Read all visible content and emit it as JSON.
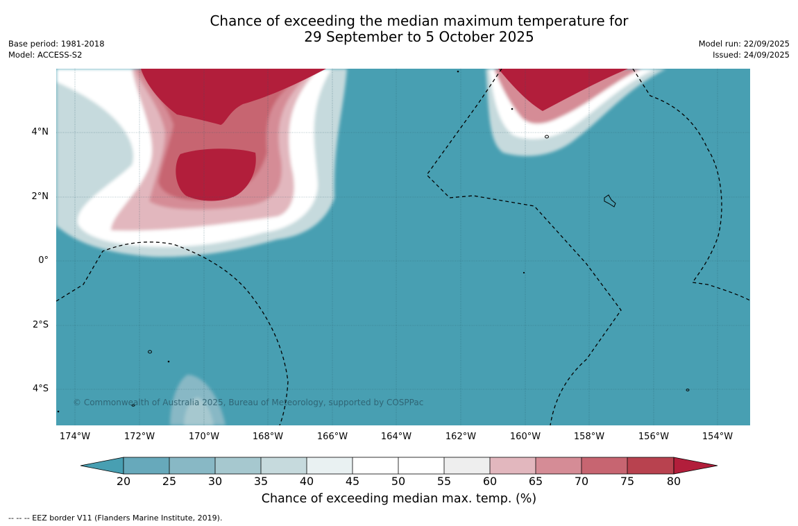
{
  "title": {
    "line1": "Chance of exceeding the median maximum temperature for",
    "line2": "29 September to 5 October 2025"
  },
  "meta_left": {
    "base_period": "Base period: 1981-2018",
    "model": "Model: ACCESS-S2"
  },
  "meta_right": {
    "model_run": "Model run: 22/09/2025",
    "issued": "Issued: 24/09/2025"
  },
  "axes": {
    "lat_labels": [
      "4°N",
      "2°N",
      "0°",
      "2°S",
      "4°S"
    ],
    "lon_labels": [
      "174°W",
      "172°W",
      "170°W",
      "168°W",
      "166°W",
      "164°W",
      "162°W",
      "160°W",
      "158°W",
      "156°W",
      "154°W"
    ]
  },
  "copyright": "© Commonwealth of Australia 2025, Bureau of Meteorology, supported by COSPPac",
  "colorbar": {
    "ticks": [
      "20",
      "25",
      "30",
      "35",
      "40",
      "45",
      "50",
      "55",
      "60",
      "65",
      "70",
      "75",
      "80"
    ],
    "title": "Chance of exceeding median max. temp. (%)"
  },
  "legend": "--  --  -- EEZ border V11 (Flanders Marine Institute, 2019).",
  "colors": {
    "low": "#489fb2",
    "high": "#b21e3b",
    "bins": [
      "#67a9bb",
      "#88b8c5",
      "#a6c8cf",
      "#c6dadd",
      "#e9f1f2",
      "#ffffff",
      "#ffffff",
      "#eeeeee",
      "#e2b7be",
      "#d58c96",
      "#c76571",
      "#b8424f"
    ]
  }
}
